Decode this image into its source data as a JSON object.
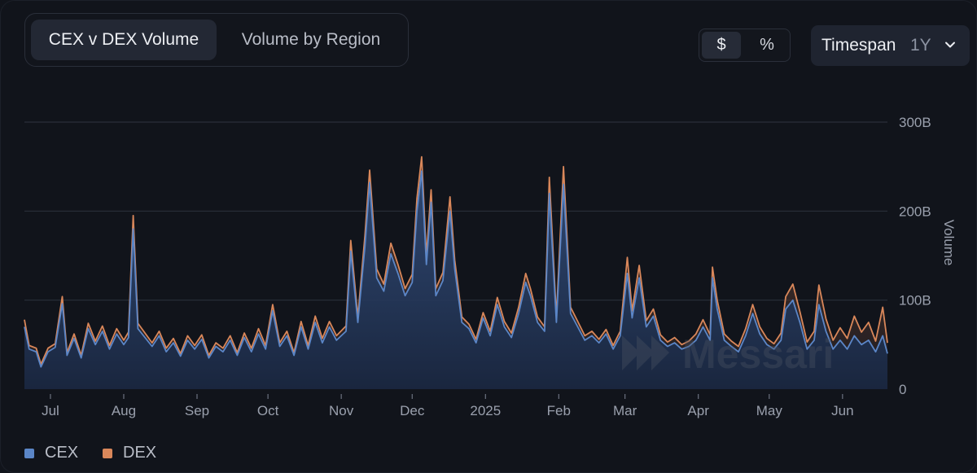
{
  "tabs": [
    {
      "label": "CEX v DEX Volume",
      "active": true
    },
    {
      "label": "Volume by Region",
      "active": false
    }
  ],
  "unit_toggle": {
    "options": [
      "$",
      "%"
    ],
    "selected": "$"
  },
  "timespan": {
    "label": "Timespan",
    "value": "1Y"
  },
  "watermark": "Messari",
  "colors": {
    "cex": "#5b86c7",
    "dex": "#d9875a",
    "background": "#11141b"
  },
  "chart_data": {
    "type": "area",
    "stacked": true,
    "x_start": "2024-06-20",
    "x_end": "2025-06-20",
    "x_ticks": [
      {
        "label": "Jul",
        "date": "2024-07-01"
      },
      {
        "label": "Aug",
        "date": "2024-08-01"
      },
      {
        "label": "Sep",
        "date": "2024-09-01"
      },
      {
        "label": "Oct",
        "date": "2024-10-01"
      },
      {
        "label": "Nov",
        "date": "2024-11-01"
      },
      {
        "label": "Dec",
        "date": "2024-12-01"
      },
      {
        "label": "2025",
        "date": "2025-01-01"
      },
      {
        "label": "Feb",
        "date": "2025-02-01"
      },
      {
        "label": "Mar",
        "date": "2025-03-01"
      },
      {
        "label": "Apr",
        "date": "2025-04-01"
      },
      {
        "label": "May",
        "date": "2025-05-01"
      },
      {
        "label": "Jun",
        "date": "2025-06-01"
      }
    ],
    "y_ticks": [
      {
        "label": "0",
        "value": 0
      },
      {
        "label": "100B",
        "value": 100
      },
      {
        "label": "200B",
        "value": 200
      },
      {
        "label": "300B",
        "value": 300
      }
    ],
    "ylabel": "Volume",
    "ylim": [
      0,
      300
    ],
    "grid": true,
    "legend": "bottom-left",
    "series": [
      {
        "name": "CEX",
        "color": "#5b86c7",
        "points": [
          [
            "2024-06-20",
            70
          ],
          [
            "2024-06-22",
            45
          ],
          [
            "2024-06-25",
            42
          ],
          [
            "2024-06-27",
            25
          ],
          [
            "2024-06-30",
            42
          ],
          [
            "2024-07-03",
            47
          ],
          [
            "2024-07-06",
            96
          ],
          [
            "2024-07-08",
            38
          ],
          [
            "2024-07-11",
            57
          ],
          [
            "2024-07-14",
            35
          ],
          [
            "2024-07-17",
            68
          ],
          [
            "2024-07-20",
            50
          ],
          [
            "2024-07-23",
            65
          ],
          [
            "2024-07-26",
            45
          ],
          [
            "2024-07-29",
            62
          ],
          [
            "2024-08-01",
            50
          ],
          [
            "2024-08-03",
            58
          ],
          [
            "2024-08-05",
            180
          ],
          [
            "2024-08-07",
            68
          ],
          [
            "2024-08-10",
            58
          ],
          [
            "2024-08-13",
            48
          ],
          [
            "2024-08-16",
            60
          ],
          [
            "2024-08-19",
            42
          ],
          [
            "2024-08-22",
            52
          ],
          [
            "2024-08-25",
            37
          ],
          [
            "2024-08-28",
            55
          ],
          [
            "2024-08-31",
            45
          ],
          [
            "2024-09-03",
            56
          ],
          [
            "2024-09-06",
            35
          ],
          [
            "2024-09-09",
            48
          ],
          [
            "2024-09-12",
            42
          ],
          [
            "2024-09-15",
            55
          ],
          [
            "2024-09-18",
            38
          ],
          [
            "2024-09-21",
            58
          ],
          [
            "2024-09-24",
            42
          ],
          [
            "2024-09-27",
            62
          ],
          [
            "2024-09-30",
            45
          ],
          [
            "2024-10-03",
            88
          ],
          [
            "2024-10-06",
            48
          ],
          [
            "2024-10-09",
            60
          ],
          [
            "2024-10-12",
            38
          ],
          [
            "2024-10-15",
            70
          ],
          [
            "2024-10-18",
            45
          ],
          [
            "2024-10-21",
            75
          ],
          [
            "2024-10-24",
            52
          ],
          [
            "2024-10-27",
            70
          ],
          [
            "2024-10-30",
            55
          ],
          [
            "2024-11-03",
            65
          ],
          [
            "2024-11-05",
            155
          ],
          [
            "2024-11-08",
            75
          ],
          [
            "2024-11-11",
            160
          ],
          [
            "2024-11-13",
            232
          ],
          [
            "2024-11-16",
            125
          ],
          [
            "2024-11-19",
            110
          ],
          [
            "2024-11-22",
            152
          ],
          [
            "2024-11-25",
            130
          ],
          [
            "2024-11-28",
            105
          ],
          [
            "2024-12-01",
            120
          ],
          [
            "2024-12-03",
            200
          ],
          [
            "2024-12-05",
            245
          ],
          [
            "2024-12-07",
            140
          ],
          [
            "2024-12-09",
            210
          ],
          [
            "2024-12-11",
            105
          ],
          [
            "2024-12-14",
            122
          ],
          [
            "2024-12-17",
            200
          ],
          [
            "2024-12-19",
            135
          ],
          [
            "2024-12-22",
            75
          ],
          [
            "2024-12-25",
            68
          ],
          [
            "2024-12-28",
            52
          ],
          [
            "2024-12-31",
            80
          ],
          [
            "2025-01-03",
            60
          ],
          [
            "2025-01-06",
            95
          ],
          [
            "2025-01-09",
            70
          ],
          [
            "2025-01-12",
            58
          ],
          [
            "2025-01-15",
            85
          ],
          [
            "2025-01-18",
            120
          ],
          [
            "2025-01-20",
            105
          ],
          [
            "2025-01-23",
            75
          ],
          [
            "2025-01-26",
            65
          ],
          [
            "2025-01-28",
            220
          ],
          [
            "2025-01-31",
            75
          ],
          [
            "2025-02-03",
            230
          ],
          [
            "2025-02-06",
            85
          ],
          [
            "2025-02-09",
            70
          ],
          [
            "2025-02-12",
            55
          ],
          [
            "2025-02-15",
            60
          ],
          [
            "2025-02-18",
            52
          ],
          [
            "2025-02-21",
            62
          ],
          [
            "2025-02-24",
            45
          ],
          [
            "2025-02-27",
            60
          ],
          [
            "2025-03-02",
            130
          ],
          [
            "2025-03-04",
            80
          ],
          [
            "2025-03-07",
            125
          ],
          [
            "2025-03-10",
            70
          ],
          [
            "2025-03-13",
            82
          ],
          [
            "2025-03-16",
            55
          ],
          [
            "2025-03-19",
            48
          ],
          [
            "2025-03-22",
            52
          ],
          [
            "2025-03-25",
            45
          ],
          [
            "2025-03-28",
            48
          ],
          [
            "2025-03-31",
            55
          ],
          [
            "2025-04-03",
            70
          ],
          [
            "2025-04-06",
            55
          ],
          [
            "2025-04-07",
            125
          ],
          [
            "2025-04-09",
            90
          ],
          [
            "2025-04-12",
            55
          ],
          [
            "2025-04-15",
            48
          ],
          [
            "2025-04-18",
            42
          ],
          [
            "2025-04-21",
            60
          ],
          [
            "2025-04-24",
            85
          ],
          [
            "2025-04-27",
            62
          ],
          [
            "2025-04-30",
            50
          ],
          [
            "2025-05-03",
            45
          ],
          [
            "2025-05-06",
            55
          ],
          [
            "2025-05-08",
            90
          ],
          [
            "2025-05-11",
            100
          ],
          [
            "2025-05-14",
            75
          ],
          [
            "2025-05-17",
            45
          ],
          [
            "2025-05-20",
            55
          ],
          [
            "2025-05-22",
            95
          ],
          [
            "2025-05-25",
            65
          ],
          [
            "2025-05-28",
            45
          ],
          [
            "2025-05-31",
            55
          ],
          [
            "2025-06-03",
            45
          ],
          [
            "2025-06-06",
            60
          ],
          [
            "2025-06-09",
            50
          ],
          [
            "2025-06-12",
            55
          ],
          [
            "2025-06-15",
            42
          ],
          [
            "2025-06-18",
            60
          ],
          [
            "2025-06-20",
            40
          ]
        ]
      },
      {
        "name": "DEX",
        "color": "#d9875a",
        "points": [
          [
            "2024-06-20",
            8
          ],
          [
            "2024-06-22",
            4
          ],
          [
            "2024-06-25",
            4
          ],
          [
            "2024-06-27",
            3
          ],
          [
            "2024-06-30",
            4
          ],
          [
            "2024-07-03",
            4
          ],
          [
            "2024-07-06",
            8
          ],
          [
            "2024-07-08",
            3
          ],
          [
            "2024-07-11",
            5
          ],
          [
            "2024-07-14",
            3
          ],
          [
            "2024-07-17",
            6
          ],
          [
            "2024-07-20",
            4
          ],
          [
            "2024-07-23",
            6
          ],
          [
            "2024-07-26",
            4
          ],
          [
            "2024-07-29",
            6
          ],
          [
            "2024-08-01",
            5
          ],
          [
            "2024-08-03",
            6
          ],
          [
            "2024-08-05",
            15
          ],
          [
            "2024-08-07",
            6
          ],
          [
            "2024-08-10",
            5
          ],
          [
            "2024-08-13",
            4
          ],
          [
            "2024-08-16",
            5
          ],
          [
            "2024-08-19",
            4
          ],
          [
            "2024-08-22",
            5
          ],
          [
            "2024-08-25",
            3
          ],
          [
            "2024-08-28",
            5
          ],
          [
            "2024-08-31",
            4
          ],
          [
            "2024-09-03",
            5
          ],
          [
            "2024-09-06",
            3
          ],
          [
            "2024-09-09",
            4
          ],
          [
            "2024-09-12",
            4
          ],
          [
            "2024-09-15",
            5
          ],
          [
            "2024-09-18",
            3
          ],
          [
            "2024-09-21",
            5
          ],
          [
            "2024-09-24",
            4
          ],
          [
            "2024-09-27",
            6
          ],
          [
            "2024-09-30",
            4
          ],
          [
            "2024-10-03",
            7
          ],
          [
            "2024-10-06",
            4
          ],
          [
            "2024-10-09",
            5
          ],
          [
            "2024-10-12",
            3
          ],
          [
            "2024-10-15",
            6
          ],
          [
            "2024-10-18",
            4
          ],
          [
            "2024-10-21",
            7
          ],
          [
            "2024-10-24",
            5
          ],
          [
            "2024-10-27",
            6
          ],
          [
            "2024-10-30",
            5
          ],
          [
            "2024-11-03",
            6
          ],
          [
            "2024-11-05",
            12
          ],
          [
            "2024-11-08",
            6
          ],
          [
            "2024-11-11",
            12
          ],
          [
            "2024-11-13",
            14
          ],
          [
            "2024-11-16",
            10
          ],
          [
            "2024-11-19",
            8
          ],
          [
            "2024-11-22",
            12
          ],
          [
            "2024-11-25",
            10
          ],
          [
            "2024-11-28",
            8
          ],
          [
            "2024-12-01",
            9
          ],
          [
            "2024-12-03",
            14
          ],
          [
            "2024-12-05",
            16
          ],
          [
            "2024-12-07",
            10
          ],
          [
            "2024-12-09",
            14
          ],
          [
            "2024-12-11",
            8
          ],
          [
            "2024-12-14",
            9
          ],
          [
            "2024-12-17",
            16
          ],
          [
            "2024-12-19",
            10
          ],
          [
            "2024-12-22",
            6
          ],
          [
            "2024-12-25",
            5
          ],
          [
            "2024-12-28",
            4
          ],
          [
            "2024-12-31",
            6
          ],
          [
            "2025-01-03",
            5
          ],
          [
            "2025-01-06",
            8
          ],
          [
            "2025-01-09",
            6
          ],
          [
            "2025-01-12",
            5
          ],
          [
            "2025-01-15",
            7
          ],
          [
            "2025-01-18",
            10
          ],
          [
            "2025-01-20",
            8
          ],
          [
            "2025-01-23",
            6
          ],
          [
            "2025-01-26",
            5
          ],
          [
            "2025-01-28",
            18
          ],
          [
            "2025-01-31",
            6
          ],
          [
            "2025-02-03",
            20
          ],
          [
            "2025-02-06",
            7
          ],
          [
            "2025-02-09",
            6
          ],
          [
            "2025-02-12",
            5
          ],
          [
            "2025-02-15",
            5
          ],
          [
            "2025-02-18",
            4
          ],
          [
            "2025-02-21",
            5
          ],
          [
            "2025-02-24",
            4
          ],
          [
            "2025-02-27",
            5
          ],
          [
            "2025-03-02",
            18
          ],
          [
            "2025-03-04",
            8
          ],
          [
            "2025-03-07",
            14
          ],
          [
            "2025-03-10",
            7
          ],
          [
            "2025-03-13",
            8
          ],
          [
            "2025-03-16",
            6
          ],
          [
            "2025-03-19",
            5
          ],
          [
            "2025-03-22",
            6
          ],
          [
            "2025-03-25",
            5
          ],
          [
            "2025-03-28",
            6
          ],
          [
            "2025-03-31",
            7
          ],
          [
            "2025-04-03",
            8
          ],
          [
            "2025-04-06",
            6
          ],
          [
            "2025-04-07",
            12
          ],
          [
            "2025-04-09",
            10
          ],
          [
            "2025-04-12",
            7
          ],
          [
            "2025-04-15",
            6
          ],
          [
            "2025-04-18",
            6
          ],
          [
            "2025-04-21",
            8
          ],
          [
            "2025-04-24",
            10
          ],
          [
            "2025-04-27",
            8
          ],
          [
            "2025-04-30",
            7
          ],
          [
            "2025-05-03",
            6
          ],
          [
            "2025-05-06",
            8
          ],
          [
            "2025-05-08",
            14
          ],
          [
            "2025-05-11",
            18
          ],
          [
            "2025-05-14",
            12
          ],
          [
            "2025-05-17",
            8
          ],
          [
            "2025-05-20",
            10
          ],
          [
            "2025-05-22",
            22
          ],
          [
            "2025-05-25",
            14
          ],
          [
            "2025-05-28",
            10
          ],
          [
            "2025-05-31",
            14
          ],
          [
            "2025-06-03",
            12
          ],
          [
            "2025-06-06",
            22
          ],
          [
            "2025-06-09",
            14
          ],
          [
            "2025-06-12",
            20
          ],
          [
            "2025-06-15",
            12
          ],
          [
            "2025-06-18",
            32
          ],
          [
            "2025-06-20",
            12
          ]
        ]
      }
    ]
  }
}
